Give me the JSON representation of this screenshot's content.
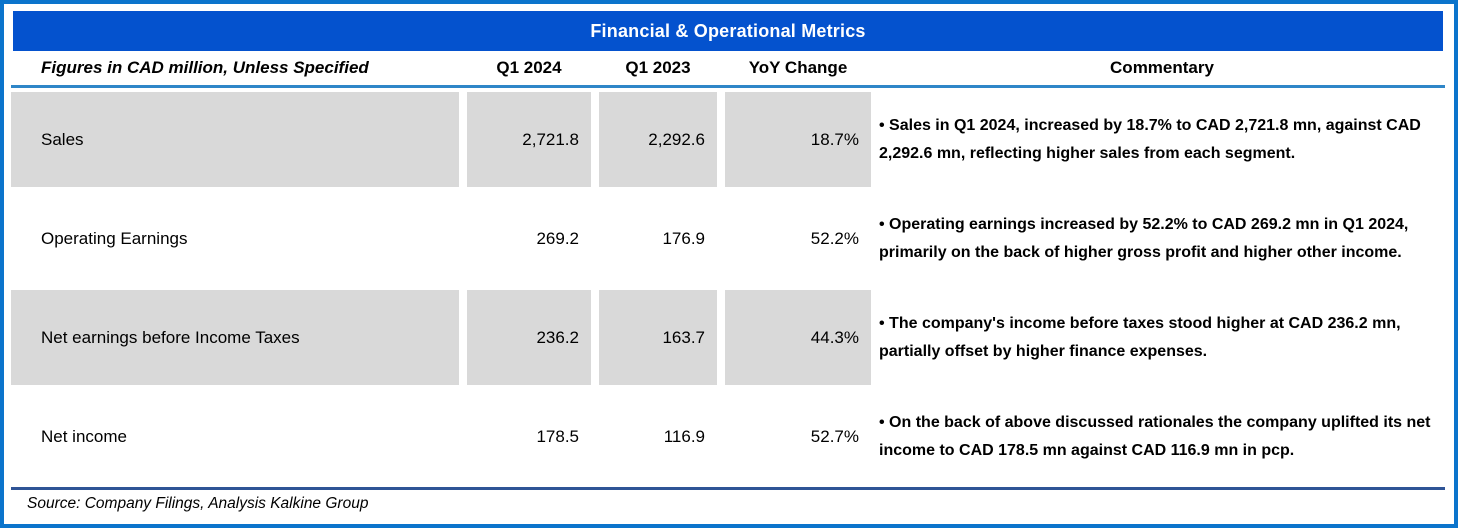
{
  "title": "Financial & Operational Metrics",
  "header": {
    "label_col": "Figures in CAD million, Unless Specified",
    "col_q1_2024": "Q1 2024",
    "col_q1_2023": "Q1 2023",
    "col_yoy": "YoY Change",
    "col_commentary": "Commentary"
  },
  "rows": [
    {
      "label": "Sales",
      "q1_2024": "2,721.8",
      "q1_2023": "2,292.6",
      "yoy_change": "18.7%",
      "commentary": "• Sales in Q1 2024, increased by 18.7% to CAD 2,721.8 mn, against CAD 2,292.6 mn, reflecting higher sales from each segment.",
      "shaded": true
    },
    {
      "label": "Operating Earnings",
      "q1_2024": "269.2",
      "q1_2023": "176.9",
      "yoy_change": "52.2%",
      "commentary": "• Operating earnings increased  by 52.2% to CAD 269.2 mn in Q1 2024, primarily on the back of higher gross profit and higher other income.",
      "shaded": false
    },
    {
      "label": "Net earnings before Income Taxes",
      "q1_2024": "236.2",
      "q1_2023": "163.7",
      "yoy_change": "44.3%",
      "commentary": "• The company's income before taxes stood higher at CAD 236.2 mn, partially offset by higher finance expenses.",
      "shaded": true
    },
    {
      "label": "Net income",
      "q1_2024": "178.5",
      "q1_2023": "116.9",
      "yoy_change": "52.7%",
      "commentary": "• On the back of above discussed rationales the company uplifted its net income to CAD 178.5 mn against CAD 116.9 mn in pcp.",
      "shaded": false
    }
  ],
  "source": "Source: Company Filings, Analysis Kalkine Group",
  "colors": {
    "title_bar": "#0452CE",
    "outer_border": "#0B74CC",
    "header_underline": "#2E86C8",
    "divider": "#2F5496",
    "row_shade": "#D9D9D9",
    "title_text": "#FFFFFF",
    "body_text": "#000000"
  }
}
